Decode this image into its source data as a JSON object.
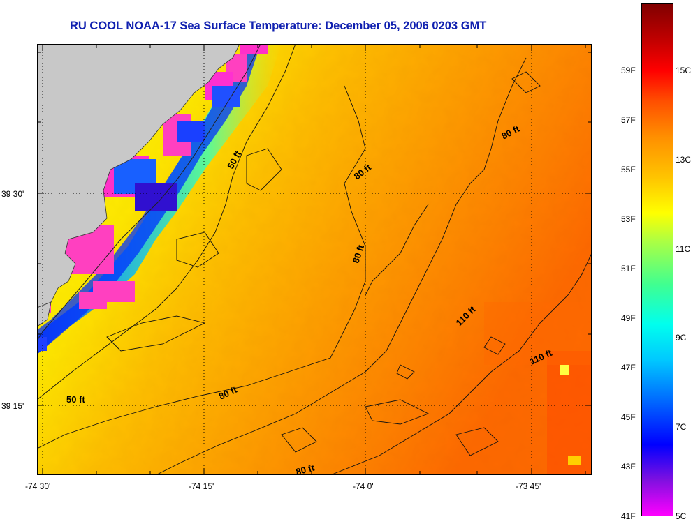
{
  "title": "RU COOL  NOAA-17  Sea Surface Temperature:  December 05, 2006 0203 GMT",
  "axes": {
    "longitude_labels": [
      "-74 30'",
      "-74 15'",
      "-74 0'",
      "-73 45'"
    ],
    "latitude_labels": [
      "39 30'",
      "39 15'"
    ]
  },
  "contours": {
    "labels": [
      "50 ft",
      "50 ft",
      "80 ft",
      "80 ft",
      "80 ft",
      "80 ft",
      "80 ft",
      "110 ft",
      "110 ft"
    ]
  },
  "colorbar": {
    "fahrenheit_labels": [
      "59F",
      "57F",
      "55F",
      "53F",
      "51F",
      "49F",
      "47F",
      "45F",
      "43F",
      "41F"
    ],
    "celsius_labels": [
      "15C",
      "13C",
      "11C",
      "9C",
      "7C",
      "5C"
    ],
    "range_c": [
      5,
      16.5
    ],
    "stops": [
      {
        "c": 5.0,
        "color": "#ff00ff"
      },
      {
        "c": 5.8,
        "color": "#8010e0"
      },
      {
        "c": 6.6,
        "color": "#0000ff"
      },
      {
        "c": 7.5,
        "color": "#0060ff"
      },
      {
        "c": 8.5,
        "color": "#00c8ff"
      },
      {
        "c": 9.3,
        "color": "#00ffee"
      },
      {
        "c": 10.2,
        "color": "#40ff90"
      },
      {
        "c": 11.2,
        "color": "#b0ff40"
      },
      {
        "c": 11.8,
        "color": "#ffff00"
      },
      {
        "c": 12.6,
        "color": "#ffc400"
      },
      {
        "c": 13.5,
        "color": "#ff9000"
      },
      {
        "c": 14.3,
        "color": "#ff5000"
      },
      {
        "c": 15.0,
        "color": "#ff0000"
      },
      {
        "c": 15.7,
        "color": "#c00000"
      },
      {
        "c": 16.5,
        "color": "#800000"
      }
    ]
  },
  "colors": {
    "land": "#c8c8c8",
    "title": "#1020b0"
  }
}
